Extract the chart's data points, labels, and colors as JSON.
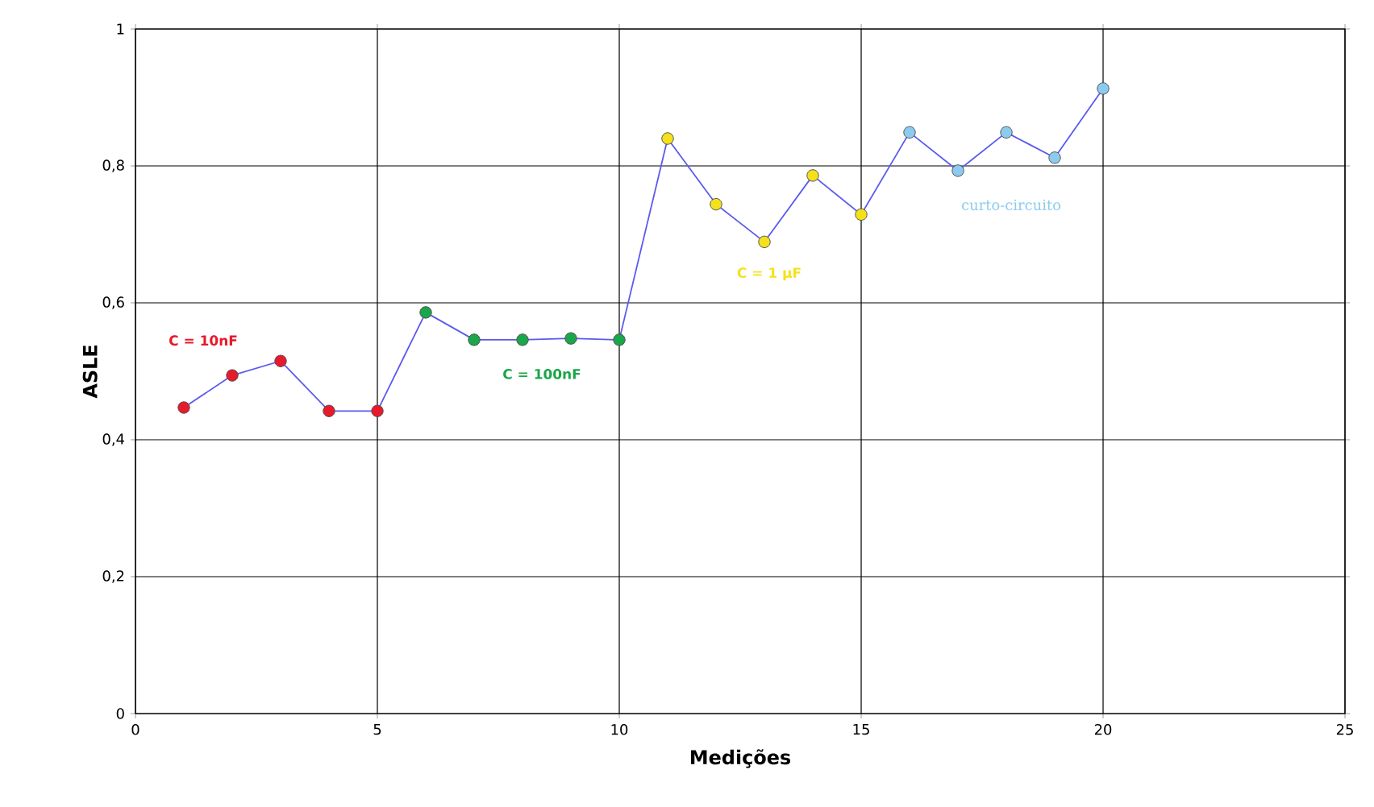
{
  "chart_data": {
    "type": "line",
    "xlabel": "Medições",
    "ylabel": "ASLE",
    "xlim": [
      0,
      25
    ],
    "ylim": [
      0,
      1
    ],
    "xticks": [
      0,
      5,
      10,
      15,
      20,
      25
    ],
    "yticks": [
      {
        "value": 0,
        "label": "0"
      },
      {
        "value": 0.2,
        "label": "0,2"
      },
      {
        "value": 0.4,
        "label": "0,4"
      },
      {
        "value": 0.6,
        "label": "0,6"
      },
      {
        "value": 0.8,
        "label": "0,8"
      },
      {
        "value": 1,
        "label": "1"
      }
    ],
    "grid": true,
    "series": [
      {
        "marker": "none",
        "color": "#5a5aee",
        "x": [
          1,
          2,
          3,
          4,
          5,
          6,
          7,
          8,
          9,
          10,
          11,
          12,
          13,
          14,
          15,
          16,
          17,
          18,
          19,
          20
        ],
        "values": [
          0.447,
          0.494,
          0.515,
          0.442,
          0.442,
          0.586,
          0.546,
          0.546,
          0.548,
          0.546,
          0.84,
          0.744,
          0.689,
          0.786,
          0.729,
          0.849,
          0.793,
          0.849,
          0.812,
          0.913
        ]
      },
      {
        "type": "scatter",
        "marker": "circle",
        "name": "C = 10nF",
        "color": "#e8192c",
        "x": [
          1,
          2,
          3,
          4,
          5
        ],
        "values": [
          0.447,
          0.494,
          0.515,
          0.442,
          0.442
        ]
      },
      {
        "type": "scatter",
        "marker": "circle",
        "name": "C = 100nF",
        "color": "#1aa64a",
        "x": [
          6,
          7,
          8,
          9,
          10
        ],
        "values": [
          0.586,
          0.546,
          0.546,
          0.548,
          0.546
        ]
      },
      {
        "type": "scatter",
        "marker": "circle",
        "name": "C = 1 µF",
        "color": "#f5e11a",
        "x": [
          11,
          12,
          13,
          14,
          15
        ],
        "values": [
          0.84,
          0.744,
          0.689,
          0.786,
          0.729
        ]
      },
      {
        "type": "scatter",
        "marker": "circle",
        "name": "curto-circuito",
        "color": "#8ccbf0",
        "x": [
          16,
          17,
          18,
          19,
          20
        ],
        "values": [
          0.849,
          0.793,
          0.849,
          0.812,
          0.913
        ]
      }
    ]
  }
}
